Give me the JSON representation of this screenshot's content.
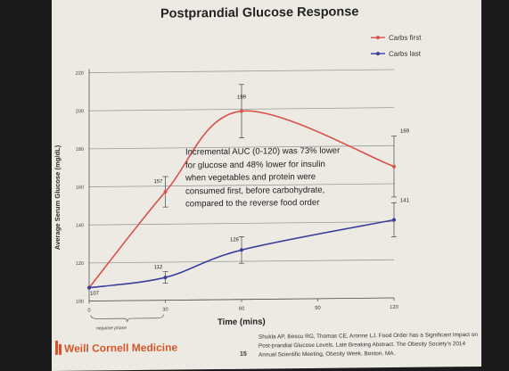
{
  "chart_data": {
    "type": "line",
    "title": "Postprandial Glucose Response",
    "xlabel": "Time (mins)",
    "ylabel": "Average Serum Glucose (mg/dL)",
    "x": [
      0,
      30,
      60,
      120
    ],
    "xticks": [
      "0",
      "30",
      "60",
      "90",
      "120"
    ],
    "yticks": [
      "100",
      "120",
      "140",
      "160",
      "180",
      "200",
      "220"
    ],
    "xlim": [
      0,
      120
    ],
    "ylim": [
      100,
      220
    ],
    "series": [
      {
        "name": "Carbs first",
        "color": "#d9534a",
        "values": [
          107,
          157,
          199,
          169
        ],
        "labels": [
          "",
          "157",
          "199",
          "169"
        ],
        "err": [
          0,
          8,
          14,
          16
        ]
      },
      {
        "name": "Carbs last",
        "color": "#3a3f9e",
        "values": [
          107,
          112,
          126,
          141
        ],
        "labels": [
          "107",
          "112",
          "126",
          "141"
        ],
        "err": [
          0,
          3,
          7,
          9
        ]
      }
    ],
    "grid": true,
    "legend": "top-right",
    "brace_label": "negative phase"
  },
  "slide": {
    "title": "Postprandial Glucose Response",
    "annotation": [
      "Incremental AUC (0-120) was 73% lower",
      "for glucose and 48% lower for insulin",
      "when vegetables and protein were",
      "consumed first, before carbohydrate,",
      "compared to the reverse food order"
    ],
    "logo": "Weill Cornell Medicine",
    "citation": "Shukla AP, Iliescu RG, Thomas CE, Aronne LJ. Food Order has a Significant Impact on Post-prandial Glucose Levels. Late Breaking Abstract. The Obesity Society's 2014 Annual Scientific Meeting, Obesity Week, Boston, MA.",
    "slide_number": "15"
  }
}
